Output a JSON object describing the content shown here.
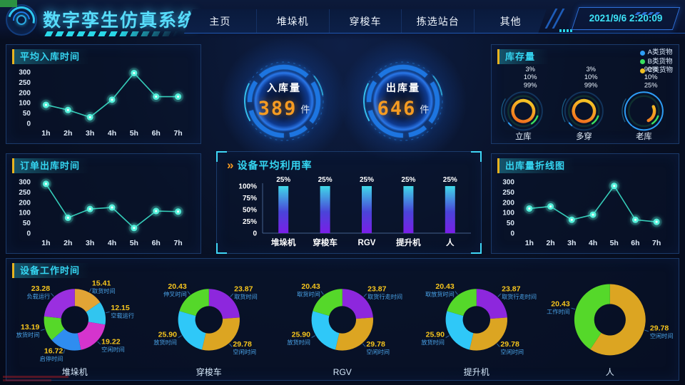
{
  "header": {
    "title": "数字孪生仿真系统",
    "nav": [
      {
        "label": "主页"
      },
      {
        "label": "堆垛机"
      },
      {
        "label": "穿梭车"
      },
      {
        "label": "拣选站台"
      },
      {
        "label": "其他"
      }
    ],
    "datetime": "2021/9/6 2:20:09"
  },
  "counters": {
    "inbound": {
      "label": "入库量",
      "value": "389",
      "unit": "件"
    },
    "outbound": {
      "label": "出库量",
      "value": "646",
      "unit": "件"
    }
  },
  "icons": {
    "utilization_chevrons": "»"
  },
  "colors": {
    "accent_cyan": "#35d6f2",
    "accent_yellow": "#e8b31e",
    "digit_orange": "#f59b22",
    "line_teal": "#35cdb9",
    "point_teal": "#55f2dc"
  },
  "chart_data": [
    {
      "id": "avg_inbound",
      "type": "line",
      "title": "平均入库时间",
      "x": [
        "1h",
        "2h",
        "3h",
        "4h",
        "5h",
        "6h",
        "7h"
      ],
      "values": [
        90,
        65,
        30,
        130,
        295,
        160,
        160
      ],
      "y_ticks": [
        0,
        50,
        100,
        200,
        250,
        300
      ],
      "grid": false,
      "legend_position": "none"
    },
    {
      "id": "order_outbound",
      "type": "line",
      "title": "订单出库时间",
      "x": [
        "1h",
        "2h",
        "3h",
        "4h",
        "5h",
        "6h",
        "7h"
      ],
      "values": [
        290,
        75,
        135,
        150,
        25,
        115,
        110
      ],
      "y_ticks": [
        0,
        50,
        100,
        200,
        250,
        300
      ],
      "grid": false,
      "legend_position": "none"
    },
    {
      "id": "outbound_line",
      "type": "line",
      "title": "出库量折线图",
      "x": [
        "1h",
        "2h",
        "3h",
        "4h",
        "5h",
        "6h",
        "7h"
      ],
      "values": [
        140,
        160,
        65,
        90,
        280,
        65,
        55
      ],
      "y_ticks": [
        0,
        50,
        100,
        200,
        250,
        300
      ],
      "grid": false,
      "legend_position": "none"
    },
    {
      "id": "utilization",
      "type": "bar",
      "title": "设备平均利用率",
      "categories": [
        "堆垛机",
        "穿梭车",
        "RGV",
        "提升机",
        "人"
      ],
      "values": [
        25,
        25,
        25,
        25,
        25
      ],
      "value_labels": [
        "25%",
        "25%",
        "25%",
        "25%",
        "25%"
      ],
      "bar_height_pct": [
        100,
        100,
        100,
        100,
        100
      ],
      "y_ticks": [
        "0",
        "25%",
        "50%",
        "75%",
        "100%"
      ],
      "bar_gradient": [
        "#3fd8e8",
        "#4a44d8",
        "#7a1ee8"
      ],
      "grid": false
    },
    {
      "id": "inventory",
      "type": "ring-gauge",
      "title": "库存量",
      "legend_position": "top-right",
      "legend": [
        {
          "label": "A类货物",
          "color": "#2e9df5"
        },
        {
          "label": "B类货物",
          "color": "#3ae060"
        },
        {
          "label": "C类货物",
          "color": "#f0c022"
        }
      ],
      "groups": [
        {
          "name": "立库",
          "labels": [
            "3%",
            "10%",
            "99%"
          ],
          "values": [
            3,
            10,
            99
          ]
        },
        {
          "name": "多穿",
          "labels": [
            "3%",
            "10%",
            "99%"
          ],
          "values": [
            3,
            10,
            99
          ]
        },
        {
          "name": "老库",
          "labels": [
            "99%",
            "10%",
            "25%"
          ],
          "values": [
            99,
            10,
            25
          ]
        }
      ]
    },
    {
      "id": "worktime",
      "type": "donut",
      "title": "设备工作时间",
      "donuts": [
        {
          "name": "堆垛机",
          "radius": 45,
          "hole": 20,
          "slices": [
            {
              "label": "取货时间",
              "value": 15.41,
              "color": "#e2a435"
            },
            {
              "label": "空载运行",
              "value": 12.15,
              "color": "#31c5f0"
            },
            {
              "label": "空闲时间",
              "value": 19.22,
              "color": "#d534cd"
            },
            {
              "label": "启停时间",
              "value": 16.72,
              "color": "#2f8df0"
            },
            {
              "label": "放货时间",
              "value": 13.19,
              "color": "#56d829"
            },
            {
              "label": "负载运行",
              "value": 23.28,
              "color": "#9a2fe0"
            }
          ]
        },
        {
          "name": "穿梭车",
          "radius": 45,
          "hole": 20,
          "slices": [
            {
              "label": "取货时间",
              "value": 23.87,
              "color": "#8d27dd"
            },
            {
              "label": "空闲时间",
              "value": 29.78,
              "color": "#dca522"
            },
            {
              "label": "放货时间",
              "value": 25.9,
              "color": "#2fc8f8"
            },
            {
              "label": "伸叉时间",
              "value": 20.43,
              "color": "#55d82a"
            }
          ]
        },
        {
          "name": "RGV",
          "radius": 45,
          "hole": 20,
          "slices": [
            {
              "label": "取货行走时间",
              "value": 23.87,
              "color": "#8d27dd"
            },
            {
              "label": "空闲时间",
              "value": 29.78,
              "color": "#dca522"
            },
            {
              "label": "放货时间",
              "value": 25.9,
              "color": "#2fc8f8"
            },
            {
              "label": "取货时间",
              "value": 20.43,
              "color": "#55d82a"
            }
          ]
        },
        {
          "name": "提升机",
          "radius": 45,
          "hole": 20,
          "slices": [
            {
              "label": "取货行走时间",
              "value": 23.87,
              "color": "#8d27dd"
            },
            {
              "label": "空闲时间",
              "value": 29.78,
              "color": "#dca522"
            },
            {
              "label": "放货时间",
              "value": 25.9,
              "color": "#2fc8f8"
            },
            {
              "label": "取放货时间",
              "value": 20.43,
              "color": "#55d82a"
            }
          ]
        },
        {
          "name": "人",
          "radius": 52,
          "hole": 23,
          "slices": [
            {
              "label": "空闲时间",
              "value": 29.78,
              "color": "#dca522"
            },
            {
              "label": "工作时间",
              "value": 20.43,
              "color": "#55d82a"
            }
          ]
        }
      ]
    }
  ]
}
